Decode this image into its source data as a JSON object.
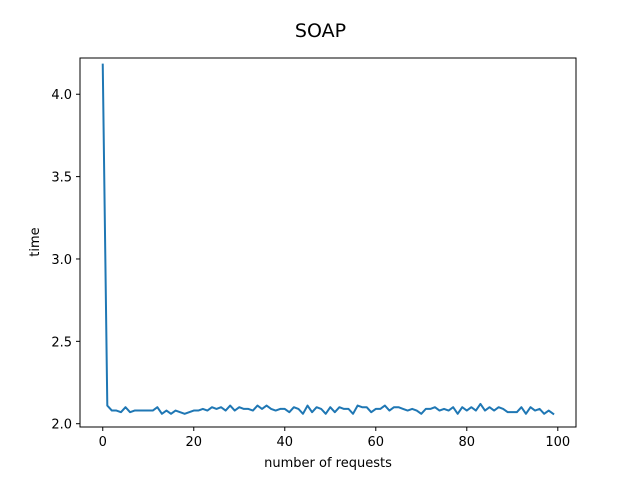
{
  "chart_data": {
    "type": "line",
    "title": "SOAP",
    "xlabel": "number of requests",
    "ylabel": "time",
    "xlim": [
      -5,
      104
    ],
    "ylim": [
      1.98,
      4.22
    ],
    "xticks": [
      0,
      20,
      40,
      60,
      80,
      100
    ],
    "yticks": [
      2.0,
      2.5,
      3.0,
      3.5,
      4.0
    ],
    "xtick_labels": [
      "0",
      "20",
      "40",
      "60",
      "80",
      "100"
    ],
    "ytick_labels": [
      "2.0",
      "2.5",
      "3.0",
      "3.5",
      "4.0"
    ],
    "grid": false,
    "series": [
      {
        "color": "#1f77b4",
        "x": [
          0,
          1,
          2,
          3,
          4,
          5,
          6,
          7,
          8,
          9,
          10,
          11,
          12,
          13,
          14,
          15,
          16,
          17,
          18,
          19,
          20,
          21,
          22,
          23,
          24,
          25,
          26,
          27,
          28,
          29,
          30,
          31,
          32,
          33,
          34,
          35,
          36,
          37,
          38,
          39,
          40,
          41,
          42,
          43,
          44,
          45,
          46,
          47,
          48,
          49,
          50,
          51,
          52,
          53,
          54,
          55,
          56,
          57,
          58,
          59,
          60,
          61,
          62,
          63,
          64,
          65,
          66,
          67,
          68,
          69,
          70,
          71,
          72,
          73,
          74,
          75,
          76,
          77,
          78,
          79,
          80,
          81,
          82,
          83,
          84,
          85,
          86,
          87,
          88,
          89,
          90,
          91,
          92,
          93,
          94,
          95,
          96,
          97,
          98,
          99
        ],
        "y": [
          4.18,
          2.11,
          2.08,
          2.08,
          2.07,
          2.1,
          2.07,
          2.08,
          2.08,
          2.08,
          2.08,
          2.08,
          2.1,
          2.06,
          2.08,
          2.06,
          2.08,
          2.07,
          2.06,
          2.07,
          2.08,
          2.08,
          2.09,
          2.08,
          2.1,
          2.09,
          2.1,
          2.08,
          2.11,
          2.08,
          2.1,
          2.09,
          2.09,
          2.08,
          2.11,
          2.09,
          2.11,
          2.09,
          2.08,
          2.09,
          2.09,
          2.07,
          2.1,
          2.09,
          2.06,
          2.11,
          2.07,
          2.1,
          2.09,
          2.06,
          2.1,
          2.07,
          2.1,
          2.09,
          2.09,
          2.06,
          2.11,
          2.1,
          2.1,
          2.07,
          2.09,
          2.09,
          2.11,
          2.08,
          2.1,
          2.1,
          2.09,
          2.08,
          2.09,
          2.08,
          2.06,
          2.09,
          2.09,
          2.1,
          2.08,
          2.09,
          2.08,
          2.1,
          2.06,
          2.1,
          2.08,
          2.1,
          2.08,
          2.12,
          2.08,
          2.1,
          2.08,
          2.1,
          2.09,
          2.07,
          2.07,
          2.07,
          2.1,
          2.06,
          2.1,
          2.08,
          2.09,
          2.06,
          2.08,
          2.06
        ]
      }
    ]
  }
}
